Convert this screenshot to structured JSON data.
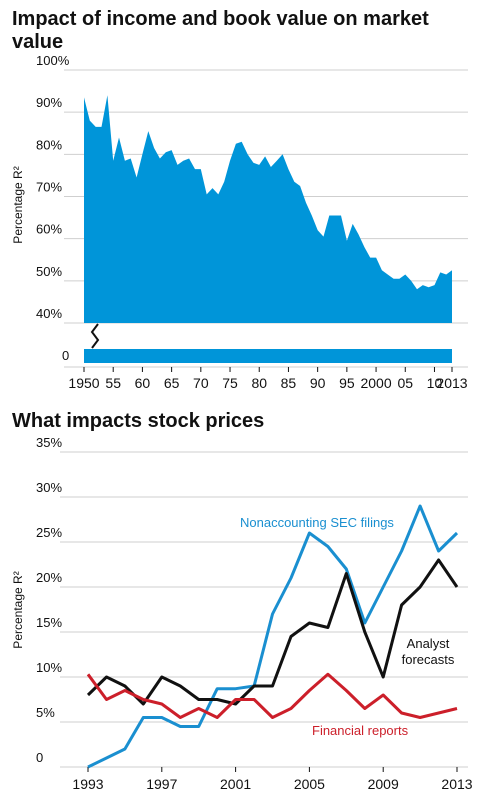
{
  "chart_data": [
    {
      "type": "area",
      "title": "Impact of income and book value on market value",
      "ylabel": "Percentage R²",
      "ylim": [
        40,
        100
      ],
      "y_ticks": [
        "100%",
        "90%",
        "80%",
        "70%",
        "60%",
        "50%",
        "40%"
      ],
      "y_break_label": "0",
      "x_ticks": [
        "1950",
        "55",
        "60",
        "65",
        "70",
        "75",
        "80",
        "85",
        "90",
        "95",
        "2000",
        "05",
        "10",
        "2013"
      ],
      "color": "#0095d9",
      "x": [
        1950,
        1951,
        1952,
        1953,
        1954,
        1955,
        1956,
        1957,
        1958,
        1959,
        1960,
        1961,
        1962,
        1963,
        1964,
        1965,
        1966,
        1967,
        1968,
        1969,
        1970,
        1971,
        1972,
        1973,
        1974,
        1975,
        1976,
        1977,
        1978,
        1979,
        1980,
        1981,
        1982,
        1983,
        1984,
        1985,
        1986,
        1987,
        1988,
        1989,
        1990,
        1991,
        1992,
        1993,
        1994,
        1995,
        1996,
        1997,
        1998,
        1999,
        2000,
        2001,
        2002,
        2003,
        2004,
        2005,
        2006,
        2007,
        2008,
        2009,
        2010,
        2011,
        2012,
        2013
      ],
      "values": [
        93.5,
        88,
        86.5,
        86.5,
        94,
        78.5,
        84,
        78.5,
        79,
        74.5,
        80,
        85.5,
        81.5,
        79,
        80.5,
        81,
        77.5,
        78.5,
        79,
        76.5,
        76.5,
        70.5,
        72,
        70.5,
        73.5,
        78.5,
        82.5,
        83,
        80,
        78,
        77.5,
        79.5,
        77,
        78.5,
        80,
        76.5,
        73.5,
        72.5,
        68.5,
        65.5,
        62,
        60.5,
        65.5,
        65.5,
        65.5,
        59.5,
        63.5,
        61,
        58,
        55.5,
        55.5,
        52.5,
        51.5,
        50.5,
        50.5,
        51.5,
        50,
        48,
        49,
        48.5,
        49,
        52,
        51.5,
        52.5
      ]
    },
    {
      "type": "line",
      "title": "What impacts stock prices",
      "ylabel": "Percentage R²",
      "ylim": [
        0,
        35
      ],
      "y_ticks": [
        "35%",
        "30%",
        "25%",
        "20%",
        "15%",
        "10%",
        "5%",
        "0"
      ],
      "x_ticks": [
        "1993",
        "1997",
        "2001",
        "2005",
        "2009",
        "2013"
      ],
      "x": [
        1993,
        1994,
        1995,
        1996,
        1997,
        1998,
        1999,
        2000,
        2001,
        2002,
        2003,
        2004,
        2005,
        2006,
        2007,
        2008,
        2009,
        2010,
        2011,
        2012,
        2013
      ],
      "series": [
        {
          "name": "Nonaccounting SEC filings",
          "color": "#1a8fd0",
          "values": [
            0,
            1,
            2,
            5.5,
            5.5,
            4.5,
            4.5,
            8.7,
            8.7,
            9,
            17,
            21,
            26,
            24.5,
            22,
            16,
            20,
            24,
            29,
            24,
            26
          ]
        },
        {
          "name": "Analyst forecasts",
          "color": "#111111",
          "values": [
            8,
            10,
            9,
            7,
            10,
            9,
            7.5,
            7.5,
            7,
            9,
            9,
            14.5,
            16,
            15.5,
            21.5,
            15,
            10,
            18,
            20,
            23,
            20
          ]
        },
        {
          "name": "Financial reports",
          "color": "#cc1f2a",
          "values": [
            10.3,
            7.5,
            8.5,
            7.5,
            7,
            5.5,
            6.5,
            5.5,
            7.5,
            7.5,
            5.5,
            6.5,
            8.5,
            10.3,
            8.5,
            6.5,
            8,
            6,
            5.5,
            6,
            6.5
          ]
        }
      ]
    }
  ]
}
